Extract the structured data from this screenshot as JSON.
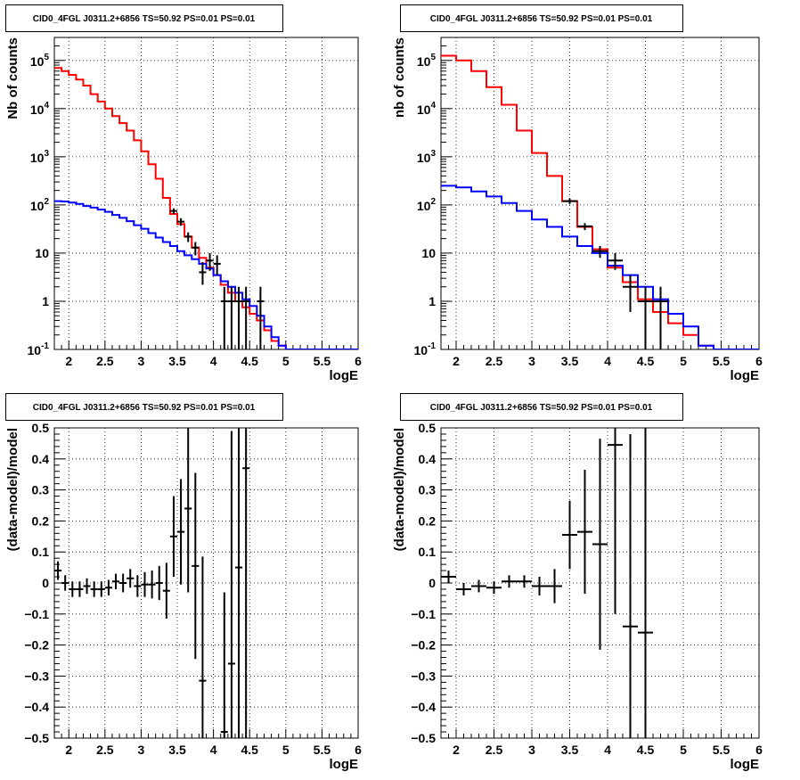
{
  "panel_title": "CID0_4FGL J0311.2+6856 TS=50.92 PS=0.01 PS=0.01",
  "colors": {
    "model_total": "#ff0000",
    "model_background": "#0000ff",
    "data": "#000000"
  },
  "chart_data": [
    {
      "type": "histogram-log",
      "title": "CID0_4FGL J0311.2+6856 TS=50.92 PS=0.01 PS=0.01",
      "xlabel": "logE",
      "ylabel": "Nb of counts",
      "xlim": [
        1.8,
        6.0
      ],
      "ylim": [
        0.1,
        300000
      ],
      "log_y": true,
      "grid": true,
      "x_ticks": [
        "2",
        "2.5",
        "3",
        "3.5",
        "4",
        "4.5",
        "5",
        "5.5",
        "6"
      ],
      "y_ticks": [
        "10^-1",
        "1",
        "10",
        "10^2",
        "10^3",
        "10^4",
        "10^5"
      ],
      "bin_edges": [
        1.8,
        1.9,
        2.0,
        2.1,
        2.2,
        2.3,
        2.4,
        2.5,
        2.6,
        2.7,
        2.8,
        2.9,
        3.0,
        3.1,
        3.2,
        3.3,
        3.4,
        3.5,
        3.6,
        3.7,
        3.8,
        3.9,
        4.0,
        4.1,
        4.2,
        4.3,
        4.4,
        4.5,
        4.6,
        4.7,
        4.8,
        4.9,
        5.0,
        5.1,
        5.2,
        5.3,
        5.4,
        5.5,
        5.6,
        5.7,
        5.8,
        5.9,
        6.0
      ],
      "series": [
        {
          "role": "model_total",
          "values": [
            70000,
            60000,
            50000,
            40000,
            30000,
            20000,
            14000,
            10000,
            7000,
            5000,
            3500,
            2200,
            1300,
            700,
            350,
            140,
            65,
            40,
            22,
            13,
            8,
            5,
            3.5,
            2.2,
            1.5,
            1.0,
            0.75,
            0.55,
            0.4,
            0.25,
            0.15,
            0.12,
            0.1,
            0.1,
            0.1,
            0.1,
            0.1,
            0.1,
            0.1,
            0.1,
            0.1,
            0.1
          ]
        },
        {
          "role": "model_background",
          "values": [
            120,
            118,
            112,
            105,
            95,
            88,
            80,
            72,
            62,
            54,
            46,
            38,
            32,
            26,
            21,
            17,
            14,
            11,
            9,
            7.5,
            6,
            4.8,
            3.5,
            2.6,
            2.0,
            1.5,
            1.1,
            0.8,
            0.5,
            0.3,
            0.18,
            0.12,
            0.1,
            0.1,
            0.1,
            0.1,
            0.1,
            0.1,
            0.1,
            0.1,
            0.1,
            0.1
          ]
        },
        {
          "role": "data",
          "points": [
            {
              "x": 3.45,
              "y": 75,
              "lo": 65,
              "hi": 85
            },
            {
              "x": 3.55,
              "y": 45,
              "lo": 37,
              "hi": 53
            },
            {
              "x": 3.65,
              "y": 22,
              "lo": 17,
              "hi": 27
            },
            {
              "x": 3.75,
              "y": 13,
              "lo": 9,
              "hi": 17
            },
            {
              "x": 3.85,
              "y": 4,
              "lo": 2.2,
              "hi": 6.5
            },
            {
              "x": 3.95,
              "y": 7,
              "lo": 4.3,
              "hi": 10
            },
            {
              "x": 4.05,
              "y": 6,
              "lo": 3.5,
              "hi": 9
            },
            {
              "x": 4.15,
              "y": 1,
              "lo": 0.1,
              "hi": 2
            },
            {
              "x": 4.25,
              "y": 1,
              "lo": 0.1,
              "hi": 2
            },
            {
              "x": 4.35,
              "y": 1,
              "lo": 0.1,
              "hi": 2
            },
            {
              "x": 4.45,
              "y": 1,
              "lo": 0.1,
              "hi": 2
            },
            {
              "x": 4.65,
              "y": 1,
              "lo": 0.1,
              "hi": 2
            }
          ]
        }
      ]
    },
    {
      "type": "histogram-log",
      "title": "CID0_4FGL J0311.2+6856 TS=50.92 PS=0.01 PS=0.01",
      "xlabel": "logE",
      "ylabel": "nb of counts",
      "xlim": [
        1.8,
        6.0
      ],
      "ylim": [
        0.1,
        300000
      ],
      "log_y": true,
      "grid": true,
      "x_ticks": [
        "2",
        "2.5",
        "3",
        "3.5",
        "4",
        "4.5",
        "5",
        "5.5",
        "6"
      ],
      "y_ticks": [
        "10^-1",
        "1",
        "10",
        "10^2",
        "10^3",
        "10^4",
        "10^5"
      ],
      "bin_edges": [
        1.8,
        2.0,
        2.2,
        2.4,
        2.6,
        2.8,
        3.0,
        3.2,
        3.4,
        3.6,
        3.8,
        4.0,
        4.2,
        4.4,
        4.6,
        4.8,
        5.0,
        5.2,
        5.4,
        5.6,
        5.8,
        6.0
      ],
      "series": [
        {
          "role": "model_total",
          "values": [
            125000,
            100000,
            60000,
            28000,
            12000,
            3500,
            1200,
            400,
            120,
            35,
            12,
            5,
            2.5,
            1.1,
            0.6,
            0.35,
            0.2,
            0.12,
            0.1,
            0.1,
            0.1
          ]
        },
        {
          "role": "model_background",
          "values": [
            250,
            230,
            190,
            150,
            110,
            75,
            50,
            35,
            22,
            14,
            10,
            5.5,
            3.5,
            2.0,
            1.1,
            0.55,
            0.3,
            0.12,
            0.1,
            0.1,
            0.1
          ]
        },
        {
          "role": "data",
          "points": [
            {
              "x": 3.5,
              "y": 120,
              "lo": 105,
              "hi": 135
            },
            {
              "x": 3.7,
              "y": 36,
              "lo": 30,
              "hi": 42
            },
            {
              "x": 3.9,
              "y": 11,
              "lo": 8,
              "hi": 14
            },
            {
              "x": 4.1,
              "y": 7,
              "lo": 4.5,
              "hi": 10
            },
            {
              "x": 4.3,
              "y": 2,
              "lo": 0.6,
              "hi": 3.5
            },
            {
              "x": 4.5,
              "y": 1,
              "lo": 0.1,
              "hi": 2
            },
            {
              "x": 4.7,
              "y": 1,
              "lo": 0.1,
              "hi": 2
            }
          ]
        }
      ]
    },
    {
      "type": "scatter-errorbar",
      "title": "CID0_4FGL J0311.2+6856 TS=50.92 PS=0.01 PS=0.01",
      "xlabel": "logE",
      "ylabel": "(data-model)/model",
      "xlim": [
        1.8,
        6.0
      ],
      "ylim": [
        -0.5,
        0.5
      ],
      "grid": true,
      "x_ticks": [
        "2",
        "2.5",
        "3",
        "3.5",
        "4",
        "4.5",
        "5",
        "5.5",
        "6"
      ],
      "y_ticks": [
        "−0.5",
        "−0.4",
        "−0.3",
        "−0.2",
        "−0.1",
        "0",
        "0.1",
        "0.2",
        "0.3",
        "0.4",
        "0.5"
      ],
      "bin_half_width": 0.05,
      "points": [
        {
          "x": 1.85,
          "y": 0.04,
          "err": 0.03
        },
        {
          "x": 1.95,
          "y": 0.0,
          "err": 0.025
        },
        {
          "x": 2.05,
          "y": -0.02,
          "err": 0.025
        },
        {
          "x": 2.15,
          "y": -0.02,
          "err": 0.025
        },
        {
          "x": 2.25,
          "y": -0.01,
          "err": 0.025
        },
        {
          "x": 2.35,
          "y": -0.02,
          "err": 0.025
        },
        {
          "x": 2.45,
          "y": -0.02,
          "err": 0.025
        },
        {
          "x": 2.55,
          "y": -0.015,
          "err": 0.025
        },
        {
          "x": 2.65,
          "y": 0.005,
          "err": 0.025
        },
        {
          "x": 2.75,
          "y": 0.0,
          "err": 0.03
        },
        {
          "x": 2.85,
          "y": 0.015,
          "err": 0.03
        },
        {
          "x": 2.95,
          "y": -0.01,
          "err": 0.035
        },
        {
          "x": 3.05,
          "y": -0.005,
          "err": 0.04
        },
        {
          "x": 3.15,
          "y": -0.005,
          "err": 0.045
        },
        {
          "x": 3.25,
          "y": 0.0,
          "err": 0.055
        },
        {
          "x": 3.35,
          "y": -0.025,
          "err": 0.09
        },
        {
          "x": 3.45,
          "y": 0.15,
          "err": 0.13
        },
        {
          "x": 3.55,
          "y": 0.165,
          "err": 0.17
        },
        {
          "x": 3.65,
          "y": 0.24,
          "err": 0.27
        },
        {
          "x": 3.75,
          "y": 0.055,
          "err": 0.3
        },
        {
          "x": 3.85,
          "y": -0.315,
          "err": 0.4
        },
        {
          "x": 4.15,
          "y": -0.48,
          "err": 0.45
        },
        {
          "x": 4.25,
          "y": -0.26,
          "err": 0.75
        },
        {
          "x": 4.35,
          "y": 0.05,
          "err": 1.0
        },
        {
          "x": 4.45,
          "y": 0.37,
          "err": 1.3
        }
      ]
    },
    {
      "type": "scatter-errorbar",
      "title": "CID0_4FGL J0311.2+6856 TS=50.92 PS=0.01 PS=0.01",
      "xlabel": "logE",
      "ylabel": "(data-model)/model",
      "xlim": [
        1.8,
        6.0
      ],
      "ylim": [
        -0.5,
        0.5
      ],
      "grid": true,
      "x_ticks": [
        "2",
        "2.5",
        "3",
        "3.5",
        "4",
        "4.5",
        "5",
        "5.5",
        "6"
      ],
      "y_ticks": [
        "−0.5",
        "−0.4",
        "−0.3",
        "−0.2",
        "−0.1",
        "0",
        "0.1",
        "0.2",
        "0.3",
        "0.4",
        "0.5"
      ],
      "bin_half_width": 0.1,
      "points": [
        {
          "x": 1.9,
          "y": 0.02,
          "err": 0.02
        },
        {
          "x": 2.1,
          "y": -0.02,
          "err": 0.02
        },
        {
          "x": 2.3,
          "y": -0.01,
          "err": 0.02
        },
        {
          "x": 2.5,
          "y": -0.015,
          "err": 0.02
        },
        {
          "x": 2.7,
          "y": 0.005,
          "err": 0.02
        },
        {
          "x": 2.9,
          "y": 0.005,
          "err": 0.02
        },
        {
          "x": 3.1,
          "y": -0.01,
          "err": 0.03
        },
        {
          "x": 3.3,
          "y": -0.01,
          "err": 0.055
        },
        {
          "x": 3.5,
          "y": 0.155,
          "err": 0.11
        },
        {
          "x": 3.7,
          "y": 0.165,
          "err": 0.2
        },
        {
          "x": 3.9,
          "y": 0.125,
          "err": 0.34
        },
        {
          "x": 4.1,
          "y": 0.445,
          "err": 0.545
        },
        {
          "x": 4.3,
          "y": -0.14,
          "err": 0.62
        },
        {
          "x": 4.5,
          "y": -0.16,
          "err": 1.0
        }
      ]
    }
  ]
}
